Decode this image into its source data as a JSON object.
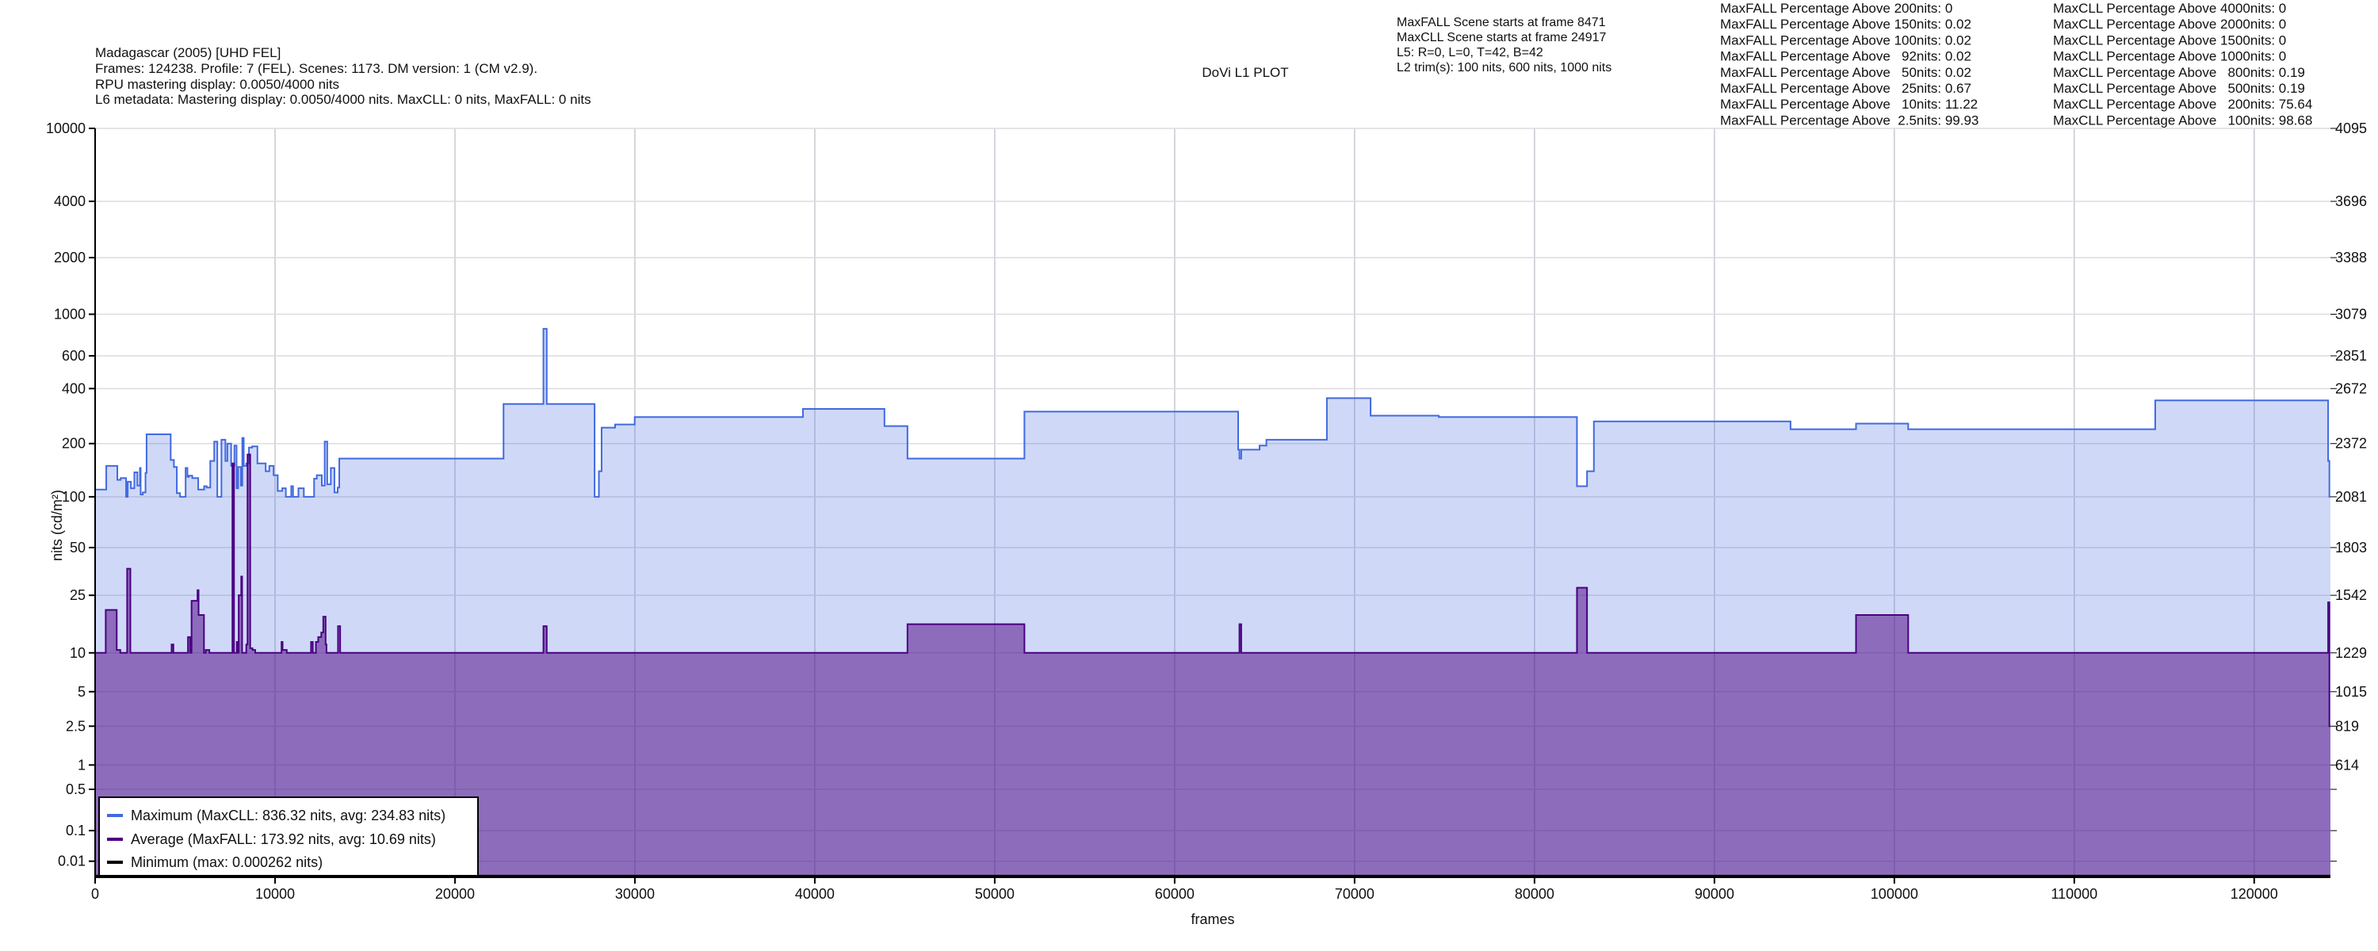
{
  "header": {
    "title": "Madagascar (2005) [UHD FEL]",
    "info_lines": [
      "Frames: 124238. Profile: 7 (FEL). Scenes: 1173. DM version: 1 (CM v2.9).",
      "RPU mastering display: 0.0050/4000 nits",
      "L6 metadata: Mastering display: 0.0050/4000 nits. MaxCLL: 0 nits, MaxFALL: 0 nits"
    ]
  },
  "plot_title": "DoVi L1 PLOT",
  "scene_info": [
    "MaxFALL Scene starts at frame 8471",
    "MaxCLL Scene starts at frame 24917",
    "L5: R=0, L=0, T=42, B=42",
    "L2 trim(s): 100 nits, 600 nits, 1000 nits"
  ],
  "maxfall_stats": [
    "MaxFALL Percentage Above 200nits: 0",
    "MaxFALL Percentage Above 150nits: 0.02",
    "MaxFALL Percentage Above 100nits: 0.02",
    "MaxFALL Percentage Above   92nits: 0.02",
    "MaxFALL Percentage Above   50nits: 0.02",
    "MaxFALL Percentage Above   25nits: 0.67",
    "MaxFALL Percentage Above   10nits: 11.22",
    "MaxFALL Percentage Above  2.5nits: 99.93"
  ],
  "maxcll_stats": [
    "MaxCLL Percentage Above 4000nits: 0",
    "MaxCLL Percentage Above 2000nits: 0",
    "MaxCLL Percentage Above 1500nits: 0",
    "MaxCLL Percentage Above 1000nits: 0",
    "MaxCLL Percentage Above   800nits: 0.19",
    "MaxCLL Percentage Above   500nits: 0.19",
    "MaxCLL Percentage Above   200nits: 75.64",
    "MaxCLL Percentage Above   100nits: 98.68"
  ],
  "chart_data": {
    "type": "area",
    "title": "DoVi L1 PLOT",
    "xlabel": "frames",
    "ylabel": "nits (cd/m²)",
    "y_scale": "PQ",
    "xlim": [
      0,
      124238
    ],
    "ylim": [
      0,
      10000
    ],
    "grid": true,
    "legend_position": "bottom-left",
    "x_ticks": [
      "0",
      "10000",
      "20000",
      "30000",
      "40000",
      "50000",
      "60000",
      "70000",
      "80000",
      "90000",
      "100000",
      "110000",
      "120000"
    ],
    "y_ticks": [
      "10000",
      "4000",
      "2000",
      "1000",
      "600",
      "400",
      "200",
      "100",
      "50",
      "25",
      "10",
      "5",
      "2.5",
      "1",
      "0.5",
      "0.1",
      "0.01"
    ],
    "y_ticks_right": [
      "4095",
      "3696",
      "3388",
      "3079",
      "2851",
      "2672",
      "2372",
      "2081",
      "1803",
      "1542",
      "1229",
      "1015",
      "819",
      "614"
    ],
    "series": [
      {
        "name": "Maximum (MaxCLL: 836.32 nits, avg: 234.83 nits)",
        "color": "#4169e1",
        "fill": "#d0daf8",
        "steps": [
          [
            0,
            110
          ],
          [
            620,
            150
          ],
          [
            1235,
            125
          ],
          [
            1420,
            128
          ],
          [
            1720,
            100
          ],
          [
            1810,
            122
          ],
          [
            1990,
            112
          ],
          [
            2180,
            138
          ],
          [
            2350,
            116
          ],
          [
            2490,
            146
          ],
          [
            2530,
            103
          ],
          [
            2650,
            106
          ],
          [
            2800,
            137
          ],
          [
            2860,
            225
          ],
          [
            4200,
            162
          ],
          [
            4380,
            148
          ],
          [
            4540,
            105
          ],
          [
            4720,
            100
          ],
          [
            5030,
            146
          ],
          [
            5130,
            130
          ],
          [
            5210,
            132
          ],
          [
            5400,
            128
          ],
          [
            5730,
            110
          ],
          [
            6060,
            115
          ],
          [
            6200,
            113
          ],
          [
            6400,
            160
          ],
          [
            6620,
            205
          ],
          [
            6790,
            100
          ],
          [
            7020,
            210
          ],
          [
            7240,
            160
          ],
          [
            7350,
            200
          ],
          [
            7560,
            150
          ],
          [
            7740,
            195
          ],
          [
            7860,
            112
          ],
          [
            7950,
            148
          ],
          [
            8100,
            116
          ],
          [
            8180,
            215
          ],
          [
            8260,
            150
          ],
          [
            8400,
            155
          ],
          [
            8550,
            190
          ],
          [
            8730,
            193
          ],
          [
            9020,
            155
          ],
          [
            9480,
            140
          ],
          [
            9680,
            150
          ],
          [
            9920,
            133
          ],
          [
            10150,
            108
          ],
          [
            10400,
            112
          ],
          [
            10600,
            100
          ],
          [
            10900,
            115
          ],
          [
            11000,
            100
          ],
          [
            11300,
            112
          ],
          [
            11600,
            100
          ],
          [
            12170,
            127
          ],
          [
            12320,
            133
          ],
          [
            12600,
            116
          ],
          [
            12760,
            205
          ],
          [
            12900,
            118
          ],
          [
            13100,
            146
          ],
          [
            13300,
            106
          ],
          [
            13480,
            113
          ],
          [
            13570,
            165
          ],
          [
            22700,
            330
          ],
          [
            24917,
            836.32
          ],
          [
            25100,
            330
          ],
          [
            27760,
            100
          ],
          [
            28000,
            140
          ],
          [
            28150,
            245
          ],
          [
            28900,
            255
          ],
          [
            29990,
            280
          ],
          [
            39340,
            310
          ],
          [
            43870,
            250
          ],
          [
            45150,
            165
          ],
          [
            51650,
            300
          ],
          [
            63530,
            185
          ],
          [
            63600,
            165
          ],
          [
            63700,
            185
          ],
          [
            64720,
            195
          ],
          [
            65100,
            210
          ],
          [
            68460,
            355
          ],
          [
            70890,
            285
          ],
          [
            74680,
            280
          ],
          [
            82360,
            115
          ],
          [
            82920,
            140
          ],
          [
            83300,
            265
          ],
          [
            94230,
            240
          ],
          [
            97870,
            258
          ],
          [
            100770,
            240
          ],
          [
            114500,
            345
          ],
          [
            124110,
            160
          ],
          [
            124180,
            100
          ]
        ]
      },
      {
        "name": "Average (MaxFALL: 173.92 nits, avg: 10.69 nits)",
        "color": "#4b0082",
        "fill": "#8e6cb9",
        "steps": [
          [
            0,
            10
          ],
          [
            590,
            20
          ],
          [
            1200,
            10.5
          ],
          [
            1400,
            10
          ],
          [
            1780,
            37
          ],
          [
            1960,
            10
          ],
          [
            4250,
            11.5
          ],
          [
            4350,
            10
          ],
          [
            5160,
            13
          ],
          [
            5280,
            10
          ],
          [
            5360,
            23
          ],
          [
            5690,
            27
          ],
          [
            5750,
            18.5
          ],
          [
            6050,
            10
          ],
          [
            6150,
            10.5
          ],
          [
            6350,
            10
          ],
          [
            7630,
            155
          ],
          [
            7720,
            10
          ],
          [
            7870,
            12
          ],
          [
            7940,
            10
          ],
          [
            7980,
            25
          ],
          [
            8120,
            33
          ],
          [
            8170,
            10
          ],
          [
            8400,
            11.5
          ],
          [
            8471,
            173.92
          ],
          [
            8620,
            10.8
          ],
          [
            8750,
            10.5
          ],
          [
            8900,
            10
          ],
          [
            10360,
            12
          ],
          [
            10420,
            10.5
          ],
          [
            10650,
            10
          ],
          [
            12000,
            12
          ],
          [
            12100,
            10
          ],
          [
            12270,
            12
          ],
          [
            12400,
            13
          ],
          [
            12570,
            14
          ],
          [
            12680,
            18
          ],
          [
            12810,
            11.5
          ],
          [
            12860,
            10
          ],
          [
            13500,
            15.5
          ],
          [
            13620,
            10
          ],
          [
            24917,
            15.5
          ],
          [
            25100,
            10
          ],
          [
            45150,
            16
          ],
          [
            51650,
            10
          ],
          [
            63600,
            16
          ],
          [
            63700,
            10
          ],
          [
            82360,
            28
          ],
          [
            82920,
            10
          ],
          [
            97870,
            18.5
          ],
          [
            100770,
            10
          ],
          [
            124110,
            22.5
          ],
          [
            124180,
            2.5
          ]
        ]
      },
      {
        "name": "Minimum (max: 0.000262 nits)",
        "color": "#000000",
        "steps": [
          [
            0,
            0.0001
          ],
          [
            124238,
            0.0001
          ]
        ]
      }
    ]
  }
}
